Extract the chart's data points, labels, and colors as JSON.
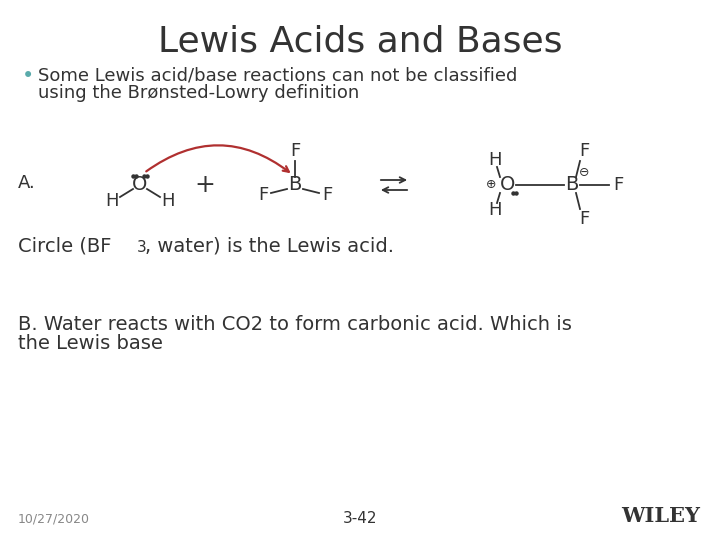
{
  "title": "Lewis Acids and Bases",
  "title_fontsize": 26,
  "title_color": "#333333",
  "bg_color": "#ffffff",
  "bullet_color": "#5aabab",
  "body_fontsize": 13,
  "footer_fontsize": 9,
  "wiley_fontsize": 15,
  "arrow_color": "#b03030",
  "body_color": "#333333",
  "footer_left": "10/27/2020",
  "footer_center": "3-42",
  "footer_right": "WILEY"
}
